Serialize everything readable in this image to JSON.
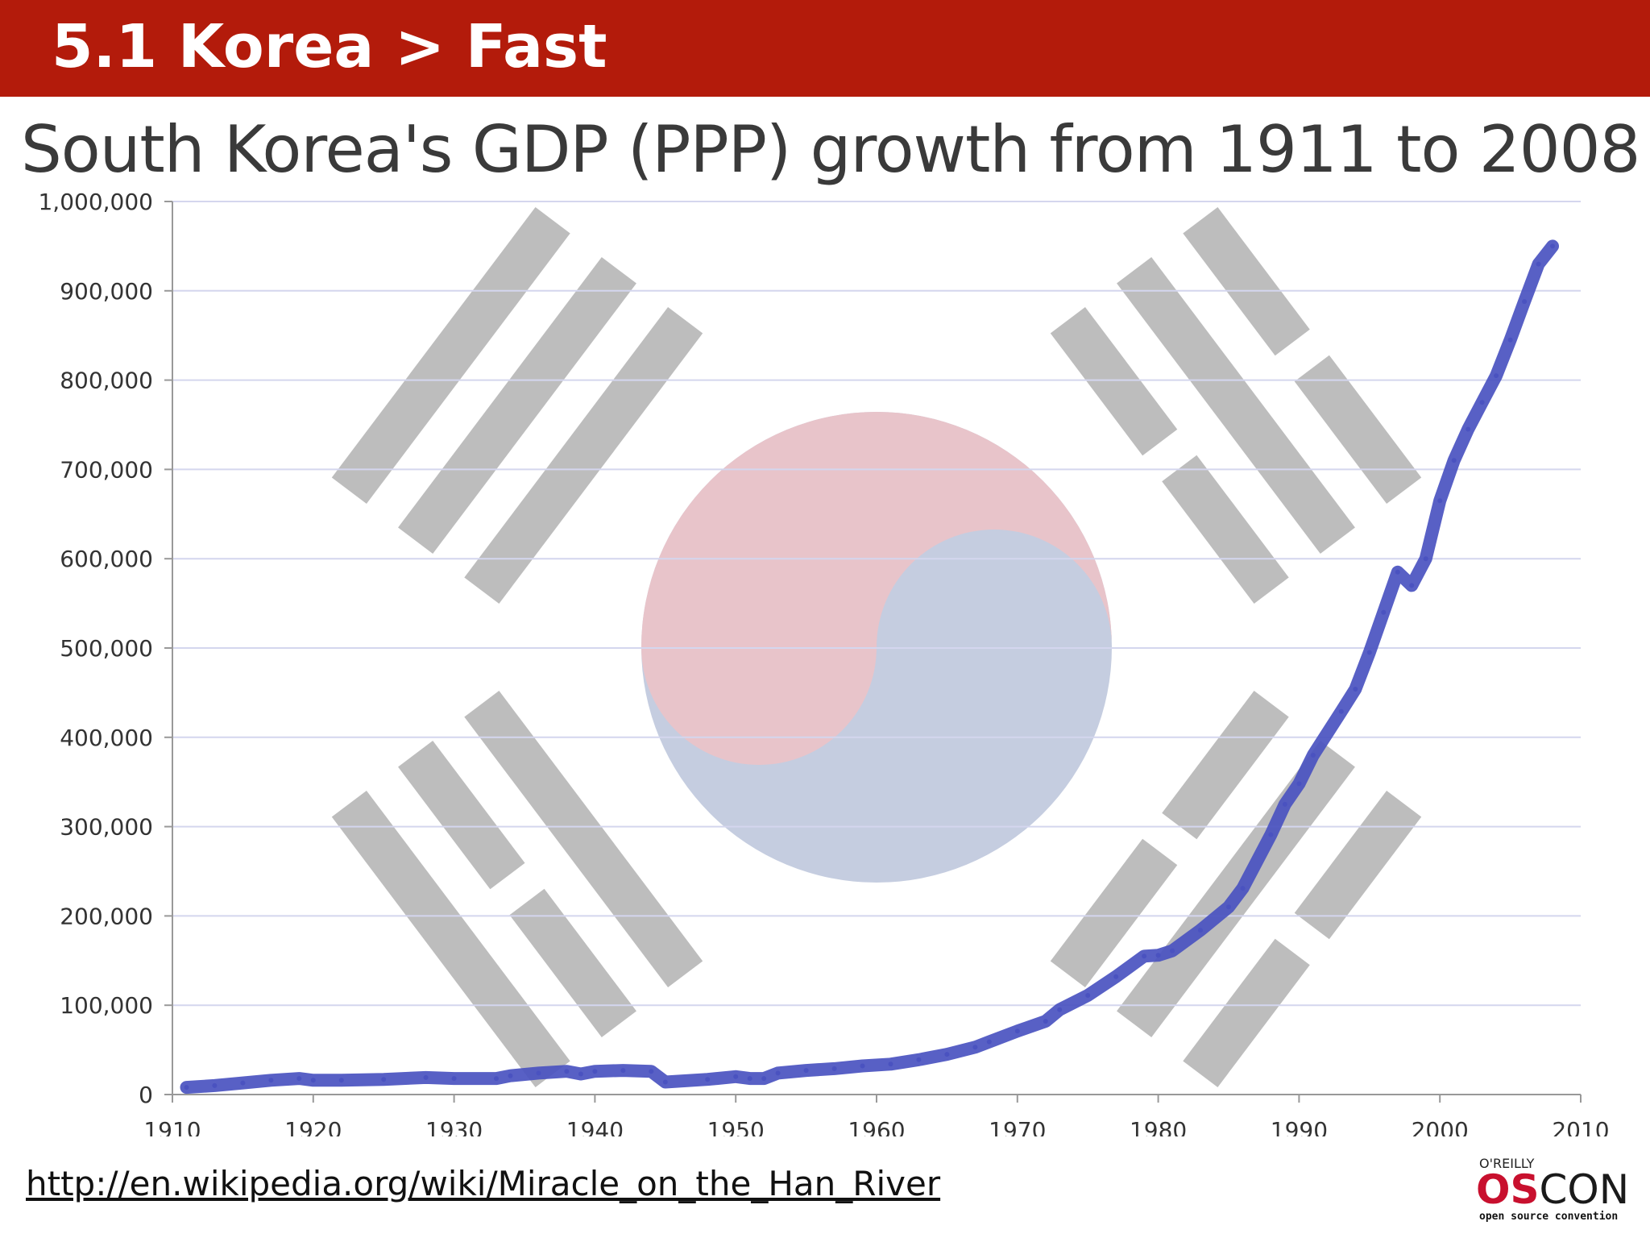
{
  "header": {
    "title": "5.1 Korea > Fast",
    "background_color": "#b31b0b"
  },
  "subtitle": "South Korea's GDP (PPP) growth from 1911 to 2008",
  "source_link": "http://en.wikipedia.org/wiki/Miracle_on_the_Han_River",
  "logo": {
    "top_text": "O'REILLY",
    "main_os": "OS",
    "main_con": "CON",
    "bottom_text": "open source convention"
  },
  "background_image": "south-korea-flag",
  "chart_data": {
    "type": "line",
    "title": "South Korea's GDP (PPP) growth from 1911 to 2008",
    "xlabel": "",
    "ylabel": "",
    "xlim": [
      1910,
      2010
    ],
    "ylim": [
      0,
      1000000
    ],
    "x_ticks": [
      "1910",
      "1920",
      "1930",
      "1940",
      "1950",
      "1960",
      "1970",
      "1980",
      "1990",
      "2000",
      "2010"
    ],
    "y_ticks": [
      "0",
      "100,000",
      "200,000",
      "300,000",
      "400,000",
      "500,000",
      "600,000",
      "700,000",
      "800,000",
      "900,000",
      "1,000,000"
    ],
    "grid": true,
    "line_color": "#4a52c0",
    "series": [
      {
        "x": [
          1911,
          1913,
          1915,
          1917,
          1919,
          1920,
          1922,
          1925,
          1928,
          1930,
          1933,
          1934,
          1936,
          1938,
          1939,
          1940,
          1942,
          1944,
          1945,
          1948,
          1950,
          1951,
          1952,
          1953,
          1955,
          1957,
          1959,
          1961,
          1963,
          1965,
          1967,
          1968,
          1970,
          1972,
          1973,
          1975,
          1977,
          1979,
          1980,
          1981,
          1983,
          1985,
          1986,
          1988,
          1989,
          1990,
          1991,
          1993,
          1994,
          1995,
          1996,
          1997,
          1998,
          1999,
          2000,
          2001,
          2002,
          2003,
          2004,
          2005,
          2006,
          2007,
          2008
        ],
        "y": [
          8000,
          10000,
          13000,
          16000,
          18000,
          16000,
          16000,
          17000,
          19000,
          18000,
          18000,
          21000,
          24000,
          26000,
          23000,
          26000,
          27000,
          26000,
          14000,
          17000,
          20000,
          18000,
          18000,
          24000,
          27000,
          29000,
          32000,
          34000,
          39000,
          45000,
          53000,
          59000,
          71000,
          82000,
          95000,
          111000,
          132000,
          155000,
          156000,
          161000,
          184000,
          210000,
          231000,
          291000,
          325000,
          348000,
          380000,
          429000,
          454000,
          495000,
          540000,
          585000,
          570000,
          600000,
          665000,
          710000,
          745000,
          775000,
          805000,
          845000,
          888000,
          930000,
          950000
        ]
      }
    ]
  }
}
